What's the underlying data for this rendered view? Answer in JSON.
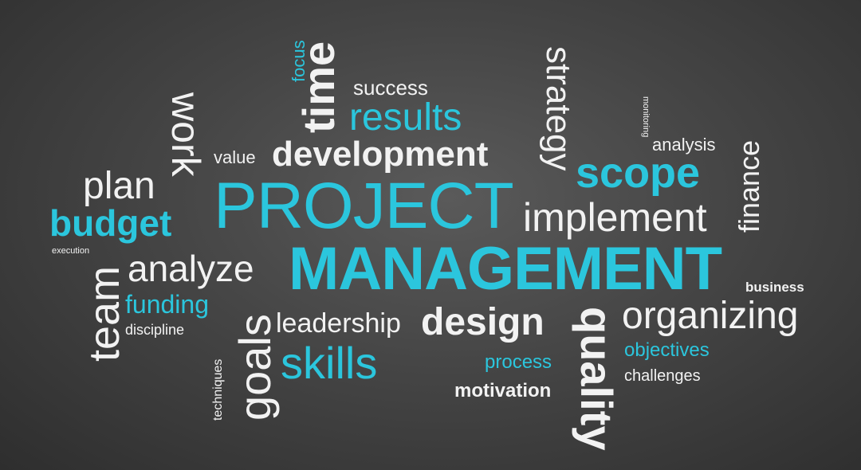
{
  "palette": {
    "white": "#f2f2f2",
    "cyan": "#2bc6dd",
    "background": "#3c3c3c"
  },
  "words": {
    "project": "PROJECT",
    "management": "MANAGEMENT",
    "development": "development",
    "scope": "scope",
    "implement": "implement",
    "budget": "budget",
    "plan": "plan",
    "analyze": "analyze",
    "results": "results",
    "success": "success",
    "time": "time",
    "focus": "focus",
    "work": "work",
    "value": "value",
    "strategy": "strategy",
    "monitoring": "monitoring",
    "analysis": "analysis",
    "finance": "finance",
    "business": "business",
    "execution": "execution",
    "team": "team",
    "funding": "funding",
    "discipline": "discipline",
    "goals": "goals",
    "techniques": "techniques",
    "leadership": "leadership",
    "skills": "skills",
    "design": "design",
    "process": "process",
    "motivation": "motivation",
    "quality": "quality",
    "organizing": "organizing",
    "objectives": "objectives",
    "challenges": "challenges"
  }
}
